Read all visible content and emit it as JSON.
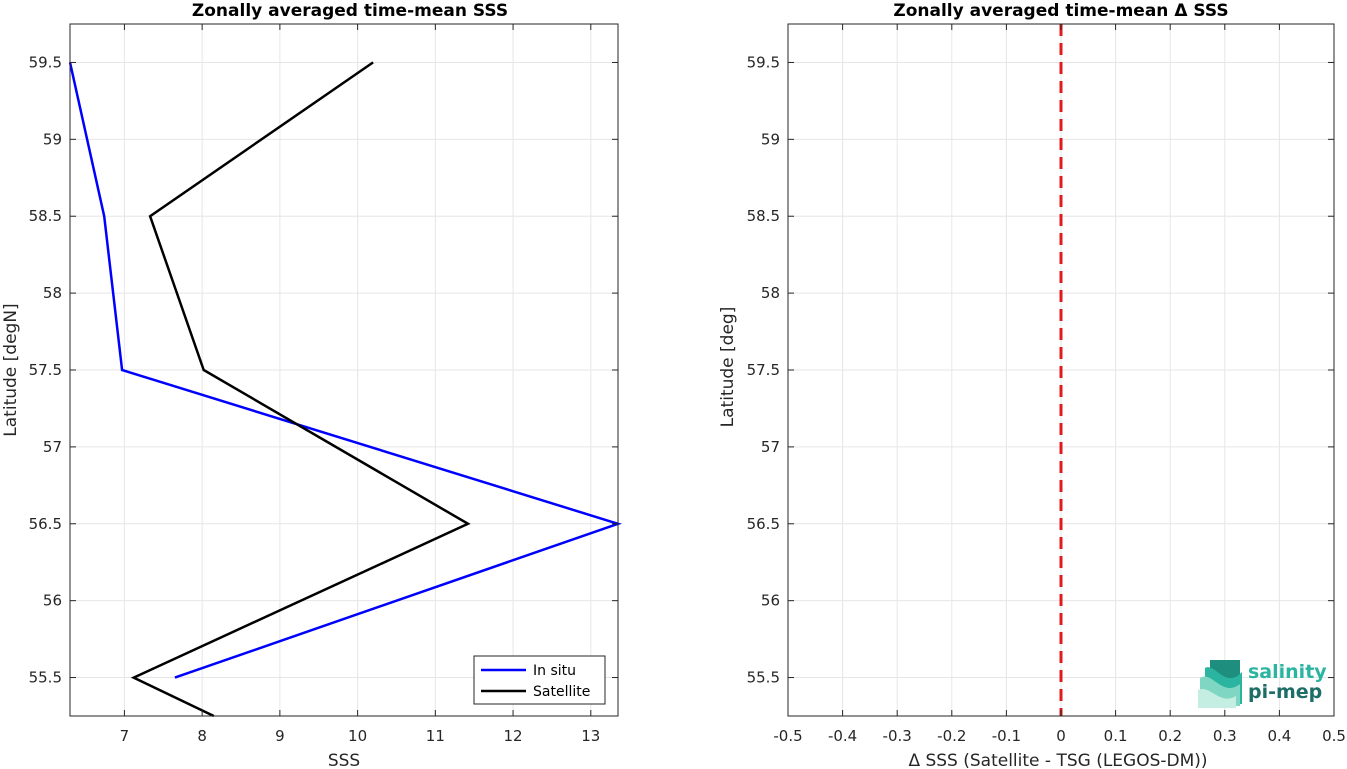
{
  "chart_data": [
    {
      "type": "line",
      "title": "Zonally averaged time-mean SSS",
      "xlabel": "SSS",
      "ylabel": "Latitude [degN]",
      "xlim": [
        6.3,
        13.35
      ],
      "ylim": [
        55.25,
        59.75
      ],
      "xticks": [
        7,
        8,
        9,
        10,
        11,
        12,
        13
      ],
      "xtick_labels": [
        "7",
        "8",
        "9",
        "10",
        "11",
        "12",
        "13"
      ],
      "yticks": [
        55.5,
        56,
        56.5,
        57,
        57.5,
        58,
        58.5,
        59,
        59.5
      ],
      "ytick_labels": [
        "55.5",
        "56",
        "56.5",
        "57",
        "57.5",
        "58",
        "58.5",
        "59",
        "59.5"
      ],
      "grid": true,
      "legend_position": "bottom-right",
      "series": [
        {
          "name": "In situ",
          "color": "#0000ff",
          "points": [
            [
              7.65,
              55.5
            ],
            [
              13.35,
              56.5
            ],
            [
              6.97,
              57.5
            ],
            [
              6.74,
              58.5
            ],
            [
              6.3,
              59.5
            ]
          ]
        },
        {
          "name": "Satellite",
          "color": "#000000",
          "points": [
            [
              8.15,
              55.25
            ],
            [
              7.12,
              55.5
            ],
            [
              11.42,
              56.5
            ],
            [
              8.02,
              57.5
            ],
            [
              7.33,
              58.5
            ],
            [
              10.2,
              59.5
            ]
          ]
        }
      ]
    },
    {
      "type": "line",
      "title": "Zonally averaged time-mean Δ SSS",
      "xlabel": "Δ SSS (Satellite - TSG (LEGOS-DM))",
      "ylabel": "Latitude [deg]",
      "xlim": [
        -0.5,
        0.5
      ],
      "ylim": [
        55.25,
        59.75
      ],
      "xticks": [
        -0.5,
        -0.4,
        -0.3,
        -0.2,
        -0.1,
        0,
        0.1,
        0.2,
        0.3,
        0.4,
        0.5
      ],
      "xtick_labels": [
        "-0.5",
        "-0.4",
        "-0.3",
        "-0.2",
        "-0.1",
        "0",
        "0.1",
        "0.2",
        "0.3",
        "0.4",
        "0.5"
      ],
      "yticks": [
        55.5,
        56,
        56.5,
        57,
        57.5,
        58,
        58.5,
        59,
        59.5
      ],
      "ytick_labels": [
        "55.5",
        "56",
        "56.5",
        "57",
        "57.5",
        "58",
        "58.5",
        "59",
        "59.5"
      ],
      "grid": true,
      "reference_line": {
        "x": 0,
        "color": "#e31a1c",
        "style": "dashed"
      },
      "series": []
    }
  ],
  "logo": {
    "line1": "salinity",
    "line2": "pi-mep",
    "color1": "#2bb5a0",
    "color2": "#1e6e68"
  }
}
